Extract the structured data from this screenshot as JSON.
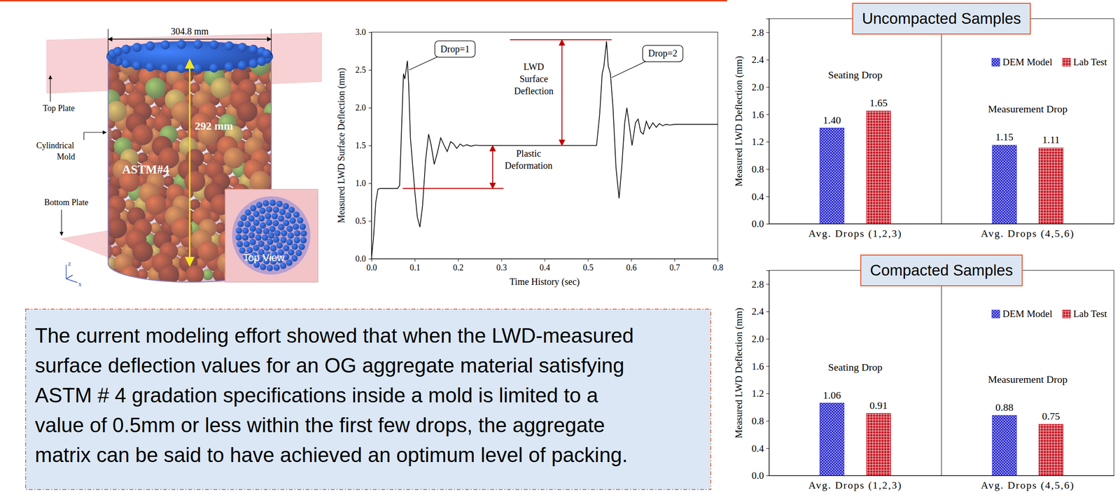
{
  "figure": {
    "labels": {
      "diameter": "304.8 mm",
      "height": "292 mm",
      "top_plate": "Top Plate",
      "mold": [
        "Cylindrical",
        "Mold"
      ],
      "bottom_plate": "Bottom Plate",
      "material": "ASTM#4",
      "top_view": "Top View",
      "axis_z": "z",
      "axis_x": "x"
    }
  },
  "chart_data": [
    {
      "type": "line",
      "color": "#000000",
      "x_label": "Time History (sec)",
      "y_label": "Measured LWD Surface Deflection (mm)",
      "x": [
        0,
        0.005,
        0.01,
        0.015,
        0.02,
        0.06,
        0.065,
        0.07,
        0.074,
        0.077,
        0.08,
        0.083,
        0.086,
        0.09,
        0.1,
        0.106,
        0.112,
        0.118,
        0.125,
        0.132,
        0.138,
        0.145,
        0.152,
        0.16,
        0.168,
        0.175,
        0.183,
        0.19,
        0.197,
        0.205,
        0.212,
        0.22,
        0.23,
        0.24,
        0.25,
        0.52,
        0.527,
        0.533,
        0.537,
        0.543,
        0.547,
        0.552,
        0.558,
        0.565,
        0.572,
        0.578,
        0.585,
        0.59,
        0.596,
        0.602,
        0.61,
        0.616,
        0.622,
        0.628,
        0.635,
        0.642,
        0.65,
        0.658,
        0.665,
        0.673,
        0.68,
        0.69,
        0.7,
        0.8
      ],
      "values": [
        0,
        0.3,
        0.75,
        0.92,
        0.93,
        0.93,
        0.97,
        1.8,
        2.45,
        2.38,
        2.5,
        2.62,
        2.3,
        1.6,
        0.9,
        0.55,
        0.42,
        0.7,
        1.3,
        1.65,
        1.5,
        1.25,
        1.4,
        1.6,
        1.5,
        1.42,
        1.55,
        1.52,
        1.46,
        1.52,
        1.49,
        1.51,
        1.49,
        1.505,
        1.5,
        1.5,
        1.9,
        2.45,
        2.55,
        2.88,
        2.55,
        2.45,
        2.0,
        1.2,
        0.8,
        1.2,
        1.8,
        2.0,
        1.75,
        1.5,
        1.8,
        1.85,
        1.68,
        1.65,
        1.82,
        1.72,
        1.8,
        1.74,
        1.79,
        1.76,
        1.78,
        1.77,
        1.78,
        1.78
      ],
      "xlim": [
        0,
        0.8
      ],
      "xticks": [
        {
          "value": 0,
          "label": "0.0"
        },
        0.1,
        0.2,
        0.3,
        0.4,
        0.5,
        0.6,
        0.7,
        0.8
      ],
      "ylim": [
        0,
        3
      ],
      "yticks": [
        {
          "value": 0,
          "label": "0.0"
        },
        0.5,
        {
          "value": 1,
          "label": "1.0"
        },
        1.5,
        {
          "value": 2,
          "label": "2.0"
        },
        2.5,
        {
          "value": 3,
          "label": "3.0"
        }
      ],
      "callouts": [
        {
          "text": "Drop=1",
          "x": 0.193,
          "y": 2.78,
          "target_x": 0.087,
          "target_y": 2.5
        },
        {
          "text": "Drop=2",
          "x": 0.673,
          "y": 2.72,
          "target_x": 0.555,
          "target_y": 2.4
        }
      ],
      "reference_lines": [
        {
          "y": 2.9,
          "x_from": 0.32,
          "x_to": 0.555
        },
        {
          "y": 0.93,
          "x_from": 0.072,
          "x_to": 0.305
        }
      ],
      "arrows": [
        {
          "lines": [
            "LWD",
            "Surface",
            "Deflection"
          ],
          "x": 0.44,
          "y_from": 2.9,
          "y_to": 1.5,
          "label_x": 0.375,
          "label_y": 2.5
        },
        {
          "lines": [
            "Plastic",
            "Deformation"
          ],
          "x": 0.28,
          "y_from": 1.5,
          "y_to": 0.93,
          "label_x": 0.363,
          "label_y": 1.35
        }
      ]
    },
    {
      "type": "bar",
      "title": "Uncompacted Samples",
      "y_label": "Measured LWD Deflection (mm)",
      "categories": [
        "Avg. Drops (1,2,3)",
        "Avg. Drops (4,5,6)"
      ],
      "annotations": [
        "Seating Drop",
        "Measurement Drop"
      ],
      "series": [
        {
          "name": "DEM Model",
          "color": "#3535d0",
          "values": [
            1.4,
            1.15
          ],
          "value_labels": [
            "1.40",
            "1.15"
          ]
        },
        {
          "name": "Lab Test",
          "color": "#c81e2a",
          "values": [
            1.65,
            1.11
          ],
          "value_labels": [
            "1.65",
            "1.11"
          ]
        }
      ],
      "ylim": [
        0,
        3
      ],
      "yticks": [
        {
          "value": 0,
          "label": "0.0"
        },
        0.4,
        0.8,
        1.2,
        1.6,
        {
          "value": 2,
          "label": "2.0"
        },
        2.4,
        2.8
      ],
      "data_labels": true,
      "legend": "top-right"
    },
    {
      "type": "bar",
      "title": "Compacted Samples",
      "y_label": "Measured LWD Deflection (mm)",
      "categories": [
        "Avg. Drops (1,2,3)",
        "Avg. Drops (4,5,6)"
      ],
      "annotations": [
        "Seating Drop",
        "Measurement Drop"
      ],
      "series": [
        {
          "name": "DEM Model",
          "color": "#3535d0",
          "values": [
            1.06,
            0.88
          ],
          "value_labels": [
            "1.06",
            "0.88"
          ]
        },
        {
          "name": "Lab Test",
          "color": "#c81e2a",
          "values": [
            0.91,
            0.75
          ],
          "value_labels": [
            "0.91",
            "0.75"
          ]
        }
      ],
      "ylim": [
        0,
        3
      ],
      "yticks": [
        {
          "value": 0,
          "label": "0.0"
        },
        0.4,
        0.8,
        1.2,
        1.6,
        {
          "value": 2,
          "label": "2.0"
        },
        2.4,
        2.8
      ],
      "data_labels": true,
      "legend": "top-right"
    }
  ],
  "conclusion": {
    "lines": [
      "The current modeling effort showed that when the LWD-measured",
      "surface deflection values for an OG aggregate material satisfying",
      "ASTM # 4 gradation specifications inside a mold is limited to a",
      "value of 0.5mm or less within the first few drops, the aggregate",
      "matrix can be said to have achieved an optimum level of packing."
    ]
  }
}
